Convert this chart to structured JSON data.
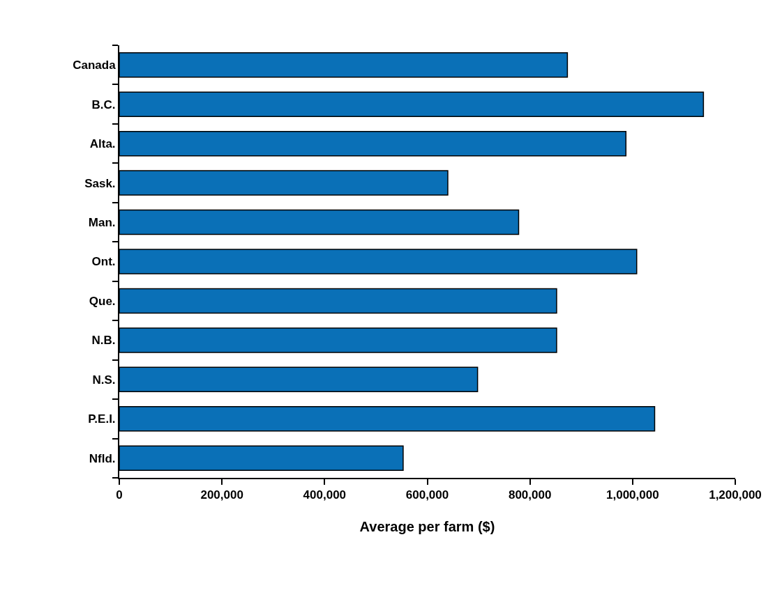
{
  "chart_data": {
    "type": "bar",
    "orientation": "horizontal",
    "xlabel": "Average per farm ($)",
    "categories": [
      "Canada",
      "B.C.",
      "Alta.",
      "Sask.",
      "Man.",
      "Ont.",
      "Que.",
      "N.B.",
      "N.S.",
      "P.E.I.",
      "Nfld."
    ],
    "values": [
      873000,
      1138000,
      987000,
      640000,
      778000,
      1008000,
      852000,
      852000,
      698000,
      1043000,
      553000
    ],
    "color": "#0a70b7",
    "xlim": [
      0,
      1200000
    ],
    "xticks": [
      {
        "value": 0,
        "label": "0"
      },
      {
        "value": 200000,
        "label": "200,000"
      },
      {
        "value": 400000,
        "label": "400,000"
      },
      {
        "value": 600000,
        "label": "600,000"
      },
      {
        "value": 800000,
        "label": "800,000"
      },
      {
        "value": 1000000,
        "label": "1,000,000"
      },
      {
        "value": 1200000,
        "label": "1,200,000"
      }
    ],
    "legend": false
  }
}
